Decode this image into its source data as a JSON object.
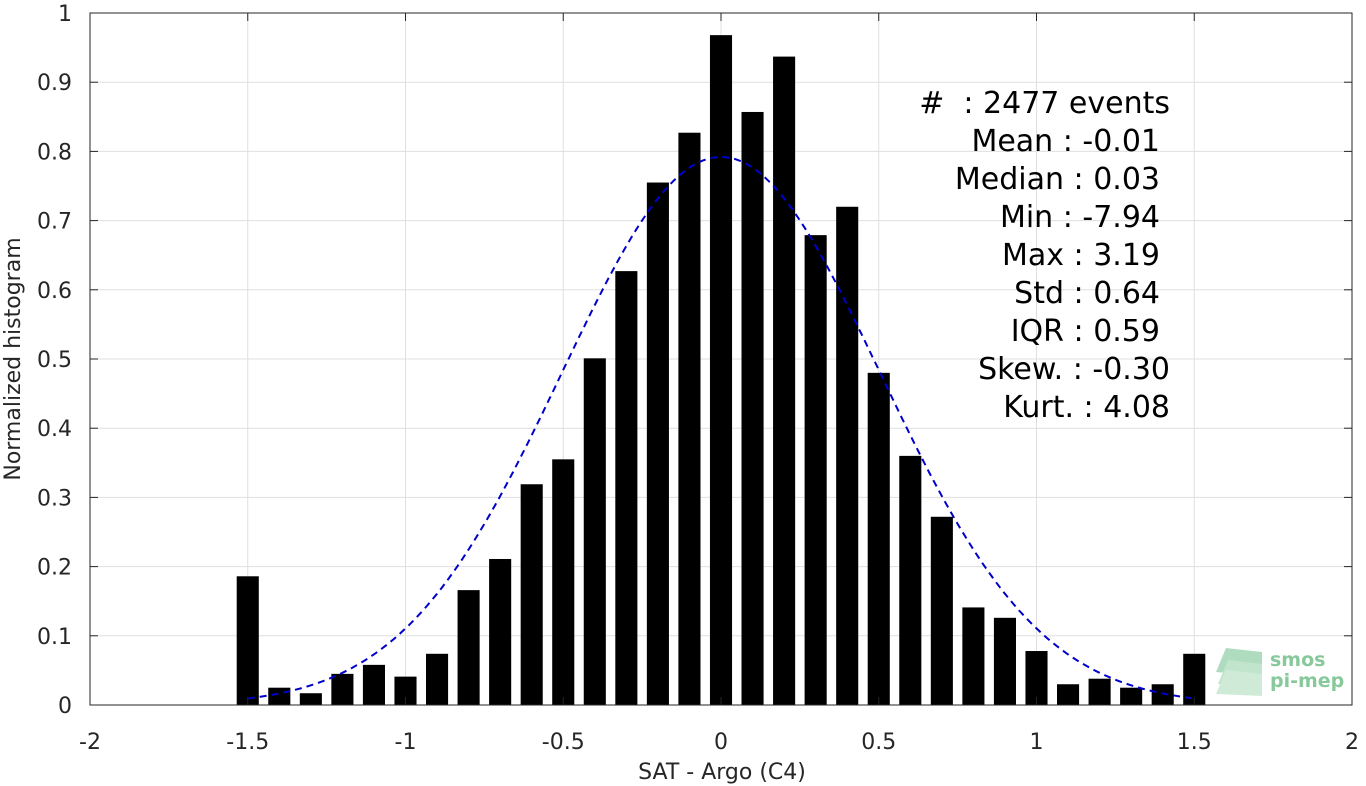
{
  "chart_data": {
    "type": "bar",
    "xlabel": "SAT - Argo (C4)",
    "ylabel": "Normalized histogram",
    "xlim": [
      -2,
      2
    ],
    "ylim": [
      0,
      1
    ],
    "xticks": [
      -2,
      -1.5,
      -1,
      -0.5,
      0,
      0.5,
      1,
      1.5,
      2
    ],
    "xtick_labels": [
      "-2",
      "-1.5",
      "-1",
      "-0.5",
      "0",
      "0.5",
      "1",
      "1.5",
      "2"
    ],
    "yticks": [
      0,
      0.1,
      0.2,
      0.3,
      0.4,
      0.5,
      0.6,
      0.7,
      0.8,
      0.9,
      1
    ],
    "ytick_labels": [
      "0",
      "0.1",
      "0.2",
      "0.3",
      "0.4",
      "0.5",
      "0.6",
      "0.7",
      "0.8",
      "0.9",
      "1"
    ],
    "grid": true,
    "bar_width": 0.07,
    "bar_color": "#000000",
    "x": [
      -1.5,
      -1.4,
      -1.3,
      -1.2,
      -1.1,
      -1.0,
      -0.9,
      -0.8,
      -0.7,
      -0.6,
      -0.5,
      -0.4,
      -0.3,
      -0.2,
      -0.1,
      0.0,
      0.1,
      0.2,
      0.3,
      0.4,
      0.5,
      0.6,
      0.7,
      0.8,
      0.9,
      1.0,
      1.1,
      1.2,
      1.3,
      1.4,
      1.5
    ],
    "values": [
      0.186,
      0.025,
      0.017,
      0.045,
      0.058,
      0.041,
      0.074,
      0.166,
      0.211,
      0.319,
      0.355,
      0.501,
      0.627,
      0.755,
      0.827,
      0.968,
      0.857,
      0.937,
      0.679,
      0.72,
      0.48,
      0.36,
      0.272,
      0.141,
      0.126,
      0.078,
      0.03,
      0.038,
      0.025,
      0.03,
      0.074
    ],
    "fit_curve": {
      "type": "gaussian",
      "mean": 0.0,
      "peak": 0.792,
      "sigma": 0.504,
      "x_range": [
        -1.5,
        1.5
      ],
      "color": "#0000cc",
      "style": "dashed"
    },
    "annotations": [
      "#  : 2477 events",
      "Mean : -0.01",
      "Median : 0.03",
      "Min : -7.94",
      "Max : 3.19",
      "Std : 0.64",
      "IQR : 0.59",
      "Skew. : -0.30",
      "Kurt. : 4.08"
    ]
  },
  "logo": {
    "line1": "smos",
    "line2": "pi-mep",
    "color": "#72c08a"
  }
}
